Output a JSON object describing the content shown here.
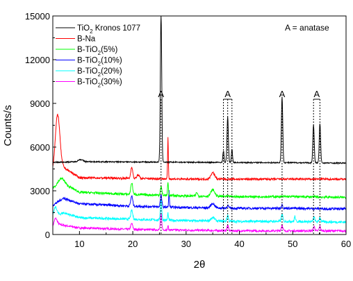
{
  "chart_data": {
    "type": "line",
    "xlabel": "2θ",
    "ylabel": "Counts/s",
    "xlim": [
      5,
      60
    ],
    "ylim": [
      0,
      15000
    ],
    "x_ticks": [
      10,
      20,
      30,
      40,
      50,
      60
    ],
    "y_ticks": [
      0,
      3000,
      6000,
      9000,
      12000,
      15000
    ],
    "legend_position": "top-left",
    "annotation": "A = anatase",
    "peak_label": "A",
    "anatase_peaks": [
      {
        "label": "A",
        "positions": [
          25.3
        ]
      },
      {
        "label": "A",
        "positions": [
          37.0,
          37.8,
          38.6
        ]
      },
      {
        "label": "A",
        "positions": [
          48.0
        ]
      },
      {
        "label": "A",
        "positions": [
          53.9,
          55.1
        ]
      }
    ],
    "series": [
      {
        "name": "TiO₂ Kronos 1077",
        "name_main": "TiO",
        "name_sub": "2",
        "name_rest": " Kronos 1077",
        "color": "#000000",
        "baseline": [
          [
            5,
            4950
          ],
          [
            10,
            5000
          ],
          [
            20,
            4980
          ],
          [
            30,
            4960
          ],
          [
            40,
            4940
          ],
          [
            50,
            4930
          ],
          [
            60,
            4900
          ]
        ],
        "peaks": [
          [
            10.2,
            150,
            0.6
          ],
          [
            25.3,
            10200,
            0.18
          ],
          [
            37.0,
            800,
            0.15
          ],
          [
            37.8,
            3100,
            0.18
          ],
          [
            38.6,
            900,
            0.15
          ],
          [
            48.0,
            4500,
            0.18
          ],
          [
            53.9,
            2600,
            0.18
          ],
          [
            55.1,
            2700,
            0.18
          ]
        ],
        "noise": 40
      },
      {
        "name": "B-Na",
        "name_main": "B-Na",
        "name_sub": "",
        "name_rest": "",
        "color": "#ff0000",
        "baseline": [
          [
            5,
            4300
          ],
          [
            7,
            4600
          ],
          [
            10,
            3900
          ],
          [
            20,
            3850
          ],
          [
            30,
            3800
          ],
          [
            40,
            3800
          ],
          [
            50,
            3800
          ],
          [
            60,
            3800
          ]
        ],
        "peaks": [
          [
            5.9,
            3800,
            0.6
          ],
          [
            19.8,
            800,
            0.25
          ],
          [
            21.0,
            250,
            0.3
          ],
          [
            26.6,
            2800,
            0.1
          ],
          [
            35.0,
            450,
            0.5
          ]
        ],
        "noise": 70
      },
      {
        "name": "B-TiO₂(5%)",
        "name_main": "B-TiO",
        "name_sub": "2",
        "name_rest": "(5%)",
        "color": "#00ff00",
        "baseline": [
          [
            5,
            3200
          ],
          [
            7,
            3500
          ],
          [
            10,
            2900
          ],
          [
            20,
            2750
          ],
          [
            30,
            2650
          ],
          [
            40,
            2600
          ],
          [
            50,
            2600
          ],
          [
            60,
            2550
          ]
        ],
        "peaks": [
          [
            6.5,
            400,
            0.8
          ],
          [
            19.8,
            800,
            0.25
          ],
          [
            25.3,
            600,
            0.2
          ],
          [
            26.6,
            900,
            0.12
          ],
          [
            32.0,
            250,
            0.2
          ],
          [
            35.0,
            450,
            0.5
          ]
        ],
        "noise": 80
      },
      {
        "name": "B-TiO₂(10%)",
        "name_main": "B-TiO",
        "name_sub": "2",
        "name_rest": "(10%)",
        "color": "#0000ff",
        "baseline": [
          [
            5,
            2000
          ],
          [
            7,
            2500
          ],
          [
            10,
            2100
          ],
          [
            20,
            1950
          ],
          [
            30,
            1850
          ],
          [
            40,
            1800
          ],
          [
            50,
            1800
          ],
          [
            60,
            1750
          ]
        ],
        "peaks": [
          [
            19.8,
            700,
            0.25
          ],
          [
            25.3,
            800,
            0.2
          ],
          [
            26.8,
            1100,
            0.1
          ],
          [
            35.0,
            300,
            0.5
          ],
          [
            37.8,
            200,
            0.2
          ],
          [
            48.0,
            250,
            0.2
          ]
        ],
        "noise": 80
      },
      {
        "name": "B-TiO₂(20%)",
        "name_main": "B-TiO",
        "name_sub": "2",
        "name_rest": "(20%)",
        "color": "#00ffff",
        "baseline": [
          [
            5,
            1200
          ],
          [
            7,
            1500
          ],
          [
            10,
            1150
          ],
          [
            20,
            1050
          ],
          [
            30,
            950
          ],
          [
            40,
            900
          ],
          [
            50,
            900
          ],
          [
            60,
            850
          ]
        ],
        "peaks": [
          [
            5.5,
            600,
            0.4
          ],
          [
            19.8,
            600,
            0.25
          ],
          [
            25.3,
            1400,
            0.18
          ],
          [
            26.6,
            500,
            0.1
          ],
          [
            35.0,
            250,
            0.5
          ],
          [
            37.8,
            400,
            0.2
          ],
          [
            48.0,
            500,
            0.2
          ],
          [
            50.4,
            350,
            0.15
          ],
          [
            54.0,
            300,
            0.2
          ],
          [
            55.1,
            300,
            0.2
          ]
        ],
        "noise": 80
      },
      {
        "name": "B-TiO₂(30%)",
        "name_main": "B-TiO",
        "name_sub": "2",
        "name_rest": "(30%)",
        "color": "#ff00ff",
        "baseline": [
          [
            5,
            500
          ],
          [
            6,
            700
          ],
          [
            10,
            450
          ],
          [
            20,
            350
          ],
          [
            30,
            300
          ],
          [
            40,
            250
          ],
          [
            50,
            250
          ],
          [
            60,
            250
          ]
        ],
        "peaks": [
          [
            5.5,
            500,
            0.4
          ],
          [
            19.8,
            400,
            0.25
          ],
          [
            25.3,
            1100,
            0.18
          ],
          [
            26.6,
            300,
            0.1
          ],
          [
            37.8,
            350,
            0.2
          ],
          [
            48.0,
            400,
            0.2
          ],
          [
            54.0,
            300,
            0.2
          ],
          [
            55.1,
            300,
            0.2
          ]
        ],
        "noise": 70
      }
    ]
  }
}
